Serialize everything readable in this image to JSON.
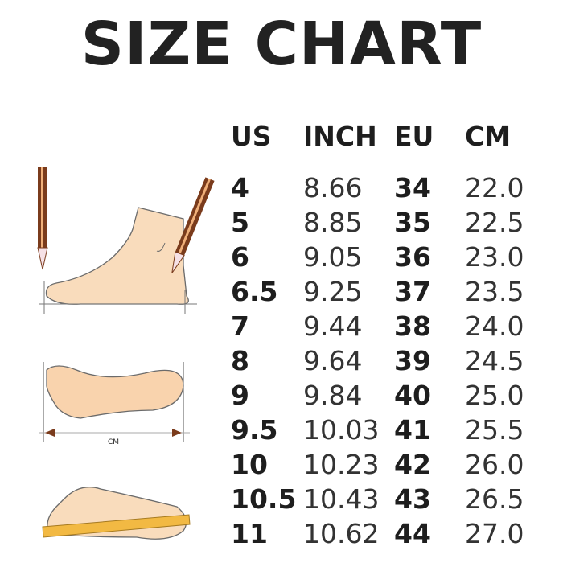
{
  "title": "SIZE CHART",
  "columns": [
    "US",
    "INCH",
    "EU",
    "CM"
  ],
  "rows": [
    [
      "4",
      "8.66",
      "34",
      "22.0"
    ],
    [
      "5",
      "8.85",
      "35",
      "22.5"
    ],
    [
      "6",
      "9.05",
      "36",
      "23.0"
    ],
    [
      "6.5",
      "9.25",
      "37",
      "23.5"
    ],
    [
      "7",
      "9.44",
      "38",
      "24.0"
    ],
    [
      "8",
      "9.64",
      "39",
      "24.5"
    ],
    [
      "9",
      "9.84",
      "40",
      "25.0"
    ],
    [
      "9.5",
      "10.03",
      "41",
      "25.5"
    ],
    [
      "10",
      "10.23",
      "42",
      "26.0"
    ],
    [
      "10.5",
      "10.43",
      "43",
      "26.5"
    ],
    [
      "11",
      "10.62",
      "44",
      "27.0"
    ]
  ],
  "illustration": {
    "measure_label": "CM"
  },
  "colors": {
    "skin": "#f9dcbc",
    "outline": "#6b6b6b",
    "pencil": "#7a3b1c",
    "ruler": "#f2b943"
  }
}
